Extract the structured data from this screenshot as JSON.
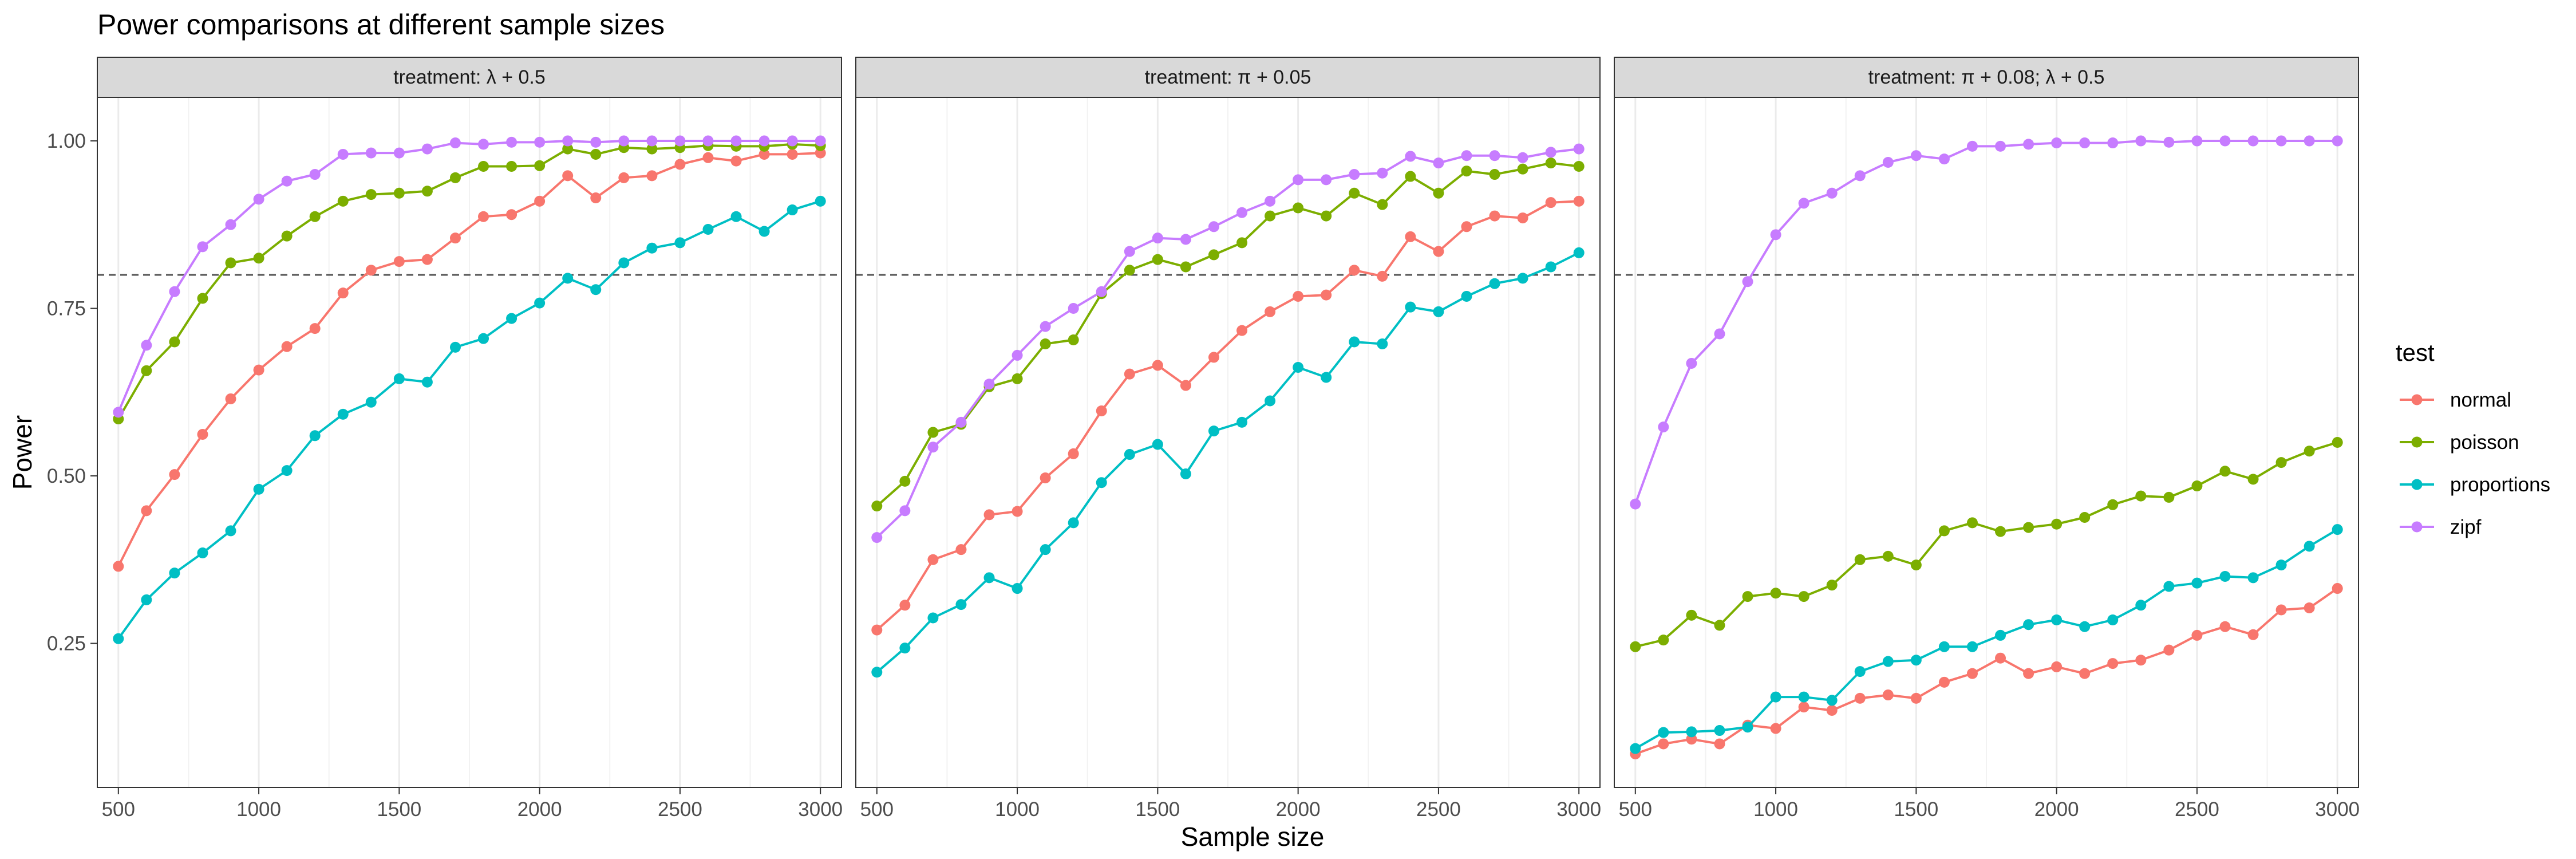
{
  "chart_data": {
    "type": "line",
    "title": "Power comparisons at different sample sizes",
    "xlabel": "Sample size",
    "ylabel": "Power",
    "legend_title": "test",
    "legend_position": "right",
    "reference_line": 0.8,
    "grid": true,
    "xlim": [
      425,
      3075
    ],
    "ylim": [
      0.035,
      1.065
    ],
    "x_ticks": [
      500,
      1000,
      1500,
      2000,
      2500,
      3000
    ],
    "x_tick_labels": [
      "500",
      "1000",
      "1500",
      "2000",
      "2500",
      "3000"
    ],
    "y_ticks": [
      0.25,
      0.5,
      0.75,
      1.0
    ],
    "y_tick_labels": [
      "0.25",
      "0.50",
      "0.75",
      "1.00"
    ],
    "x": [
      500,
      600,
      700,
      800,
      900,
      1000,
      1100,
      1200,
      1300,
      1400,
      1500,
      1600,
      1700,
      1800,
      1900,
      2000,
      2100,
      2200,
      2300,
      2400,
      2500,
      2600,
      2700,
      2800,
      2900,
      3000
    ],
    "colors": {
      "normal": "#F8766D",
      "poisson": "#7CAE00",
      "proportions": "#00BFC4",
      "zipf": "#C77CFF"
    },
    "legend": [
      "normal",
      "poisson",
      "proportions",
      "zipf"
    ],
    "panels": [
      {
        "label": "treatment: λ + 0.5",
        "series": [
          {
            "name": "normal",
            "values": [
              0.365,
              0.448,
              0.502,
              0.562,
              0.615,
              0.658,
              0.693,
              0.72,
              0.773,
              0.807,
              0.82,
              0.823,
              0.855,
              0.887,
              0.89,
              0.91,
              0.948,
              0.915,
              0.945,
              0.948,
              0.965,
              0.975,
              0.97,
              0.98,
              0.98,
              0.982
            ]
          },
          {
            "name": "poisson",
            "values": [
              0.585,
              0.657,
              0.7,
              0.765,
              0.818,
              0.825,
              0.858,
              0.887,
              0.91,
              0.92,
              0.922,
              0.925,
              0.945,
              0.962,
              0.962,
              0.963,
              0.988,
              0.98,
              0.99,
              0.988,
              0.99,
              0.993,
              0.992,
              0.992,
              0.995,
              0.993
            ]
          },
          {
            "name": "proportions",
            "values": [
              0.257,
              0.315,
              0.355,
              0.385,
              0.418,
              0.48,
              0.508,
              0.56,
              0.592,
              0.61,
              0.645,
              0.64,
              0.692,
              0.705,
              0.735,
              0.758,
              0.795,
              0.778,
              0.818,
              0.84,
              0.848,
              0.868,
              0.887,
              0.865,
              0.897,
              0.91
            ]
          },
          {
            "name": "zipf",
            "values": [
              0.595,
              0.695,
              0.775,
              0.842,
              0.875,
              0.913,
              0.94,
              0.95,
              0.98,
              0.982,
              0.982,
              0.988,
              0.997,
              0.995,
              0.998,
              0.998,
              1.0,
              0.998,
              1.0,
              1.0,
              1.0,
              1.0,
              1.0,
              1.0,
              1.0,
              1.0
            ]
          }
        ]
      },
      {
        "label": "treatment: π + 0.05",
        "series": [
          {
            "name": "normal",
            "values": [
              0.27,
              0.307,
              0.375,
              0.39,
              0.442,
              0.447,
              0.497,
              0.533,
              0.597,
              0.652,
              0.665,
              0.635,
              0.677,
              0.717,
              0.745,
              0.768,
              0.77,
              0.807,
              0.798,
              0.857,
              0.835,
              0.872,
              0.888,
              0.885,
              0.908,
              0.91
            ]
          },
          {
            "name": "poisson",
            "values": [
              0.455,
              0.492,
              0.565,
              0.577,
              0.633,
              0.645,
              0.697,
              0.703,
              0.772,
              0.807,
              0.823,
              0.812,
              0.83,
              0.848,
              0.888,
              0.9,
              0.888,
              0.922,
              0.905,
              0.947,
              0.922,
              0.955,
              0.95,
              0.958,
              0.967,
              0.962
            ]
          },
          {
            "name": "proportions",
            "values": [
              0.207,
              0.243,
              0.288,
              0.308,
              0.348,
              0.332,
              0.39,
              0.43,
              0.49,
              0.532,
              0.547,
              0.503,
              0.567,
              0.58,
              0.612,
              0.662,
              0.647,
              0.7,
              0.697,
              0.752,
              0.745,
              0.768,
              0.787,
              0.795,
              0.812,
              0.833
            ]
          },
          {
            "name": "zipf",
            "values": [
              0.408,
              0.448,
              0.543,
              0.58,
              0.637,
              0.68,
              0.723,
              0.75,
              0.775,
              0.835,
              0.855,
              0.853,
              0.872,
              0.893,
              0.91,
              0.942,
              0.942,
              0.95,
              0.952,
              0.977,
              0.967,
              0.978,
              0.978,
              0.975,
              0.983,
              0.988
            ]
          }
        ]
      },
      {
        "label": "treatment: π + 0.08; λ + 0.5",
        "series": [
          {
            "name": "normal",
            "values": [
              0.085,
              0.1,
              0.107,
              0.1,
              0.128,
              0.123,
              0.155,
              0.15,
              0.168,
              0.173,
              0.168,
              0.192,
              0.205,
              0.228,
              0.205,
              0.215,
              0.205,
              0.22,
              0.225,
              0.24,
              0.262,
              0.275,
              0.263,
              0.3,
              0.303,
              0.332
            ]
          },
          {
            "name": "poisson",
            "values": [
              0.245,
              0.255,
              0.292,
              0.277,
              0.32,
              0.325,
              0.32,
              0.337,
              0.375,
              0.38,
              0.367,
              0.418,
              0.43,
              0.417,
              0.423,
              0.428,
              0.438,
              0.457,
              0.47,
              0.468,
              0.485,
              0.507,
              0.495,
              0.52,
              0.537,
              0.55
            ]
          },
          {
            "name": "proportions",
            "values": [
              0.093,
              0.117,
              0.118,
              0.12,
              0.125,
              0.17,
              0.17,
              0.165,
              0.208,
              0.223,
              0.225,
              0.245,
              0.245,
              0.262,
              0.278,
              0.285,
              0.275,
              0.285,
              0.307,
              0.335,
              0.34,
              0.35,
              0.348,
              0.367,
              0.395,
              0.42
            ]
          },
          {
            "name": "zipf",
            "values": [
              0.458,
              0.573,
              0.668,
              0.712,
              0.79,
              0.86,
              0.907,
              0.922,
              0.948,
              0.968,
              0.978,
              0.973,
              0.992,
              0.992,
              0.995,
              0.997,
              0.997,
              0.997,
              1.0,
              0.998,
              1.0,
              1.0,
              1.0,
              1.0,
              1.0,
              1.0
            ]
          }
        ]
      }
    ]
  }
}
